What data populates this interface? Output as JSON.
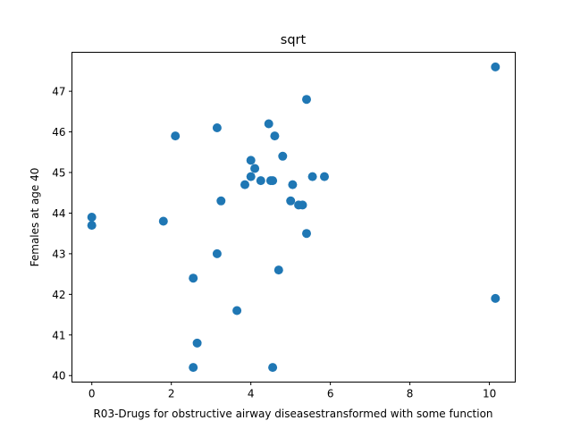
{
  "chart_data": {
    "type": "scatter",
    "title": "sqrt",
    "xlabel": "R03-Drugs for obstructive airway diseasestransformed with some function",
    "ylabel": "Females at age 40",
    "xlim": [
      -0.5,
      10.65
    ],
    "ylim": [
      39.84,
      47.96
    ],
    "xticks": [
      0,
      2,
      4,
      6,
      8,
      10
    ],
    "yticks": [
      40,
      41,
      42,
      43,
      44,
      45,
      46,
      47
    ],
    "grid": false,
    "legend": "none",
    "marker_color": "#1f77b4",
    "series": [
      {
        "points": [
          [
            0.0,
            43.9
          ],
          [
            0.0,
            43.7
          ],
          [
            1.8,
            43.8
          ],
          [
            2.1,
            45.9
          ],
          [
            2.55,
            42.4
          ],
          [
            2.55,
            40.2
          ],
          [
            2.65,
            40.8
          ],
          [
            3.15,
            46.1
          ],
          [
            3.15,
            43.0
          ],
          [
            3.25,
            44.3
          ],
          [
            3.65,
            41.6
          ],
          [
            3.85,
            44.7
          ],
          [
            4.0,
            45.3
          ],
          [
            4.0,
            44.9
          ],
          [
            4.1,
            45.1
          ],
          [
            4.25,
            44.8
          ],
          [
            4.45,
            46.2
          ],
          [
            4.5,
            44.8
          ],
          [
            4.55,
            44.8
          ],
          [
            4.55,
            40.2
          ],
          [
            4.6,
            45.9
          ],
          [
            4.7,
            42.6
          ],
          [
            4.8,
            45.4
          ],
          [
            5.0,
            44.3
          ],
          [
            5.05,
            44.7
          ],
          [
            5.2,
            44.2
          ],
          [
            5.3,
            44.2
          ],
          [
            5.4,
            46.8
          ],
          [
            5.4,
            43.5
          ],
          [
            5.55,
            44.9
          ],
          [
            5.85,
            44.9
          ],
          [
            10.15,
            47.6
          ],
          [
            10.15,
            41.9
          ]
        ]
      }
    ]
  }
}
